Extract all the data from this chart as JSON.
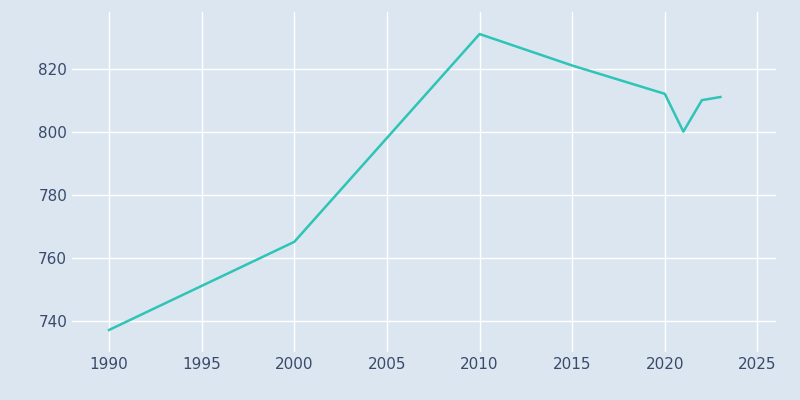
{
  "years": [
    1990,
    2000,
    2010,
    2015,
    2020,
    2021,
    2022,
    2023
  ],
  "population": [
    737,
    765,
    831,
    821,
    812,
    800,
    810,
    811
  ],
  "line_color": "#2EC4B6",
  "bg_color": "#dce6f0",
  "plot_bg_color": "#dce6f0",
  "grid_color": "#ffffff",
  "xlabel": "",
  "ylabel": "",
  "xlim": [
    1988,
    2026
  ],
  "ylim": [
    730,
    838
  ],
  "yticks": [
    740,
    760,
    780,
    800,
    820
  ],
  "xticks": [
    1990,
    1995,
    2000,
    2005,
    2010,
    2015,
    2020,
    2025
  ],
  "tick_color": "#3a4a6b",
  "line_width": 1.8,
  "figsize": [
    8.0,
    4.0
  ],
  "dpi": 100
}
